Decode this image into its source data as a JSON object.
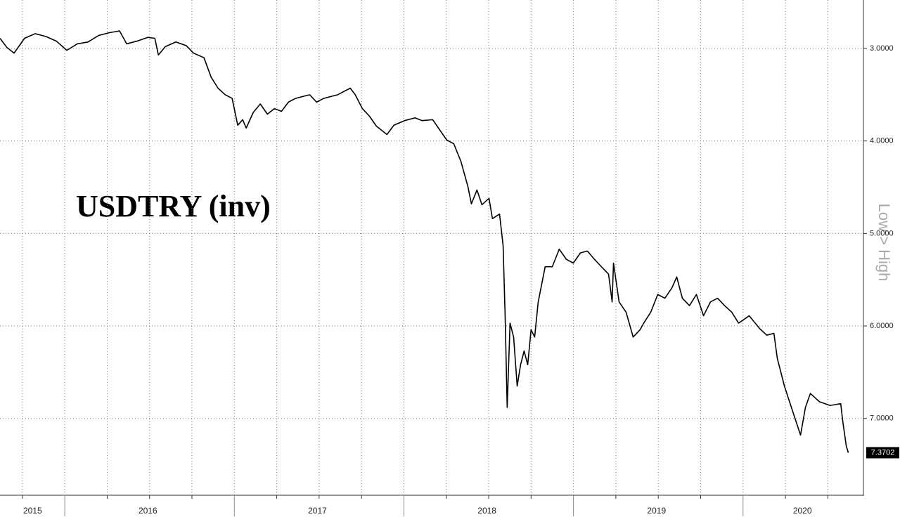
{
  "chart_data": {
    "type": "line",
    "title": "USDTRY (inv)",
    "y_axis_label": "Low > High",
    "color": "#000000",
    "grid": true,
    "y_inverted": true,
    "xlim": [
      2015.618,
      2020.71
    ],
    "ylim": [
      2.476,
      7.83
    ],
    "yticks": [
      {
        "value": 3,
        "label": "3.0000"
      },
      {
        "value": 4,
        "label": "4.0000"
      },
      {
        "value": 5,
        "label": "5.0000"
      },
      {
        "value": 6,
        "label": "6.0000"
      },
      {
        "value": 7,
        "label": "7.0000"
      }
    ],
    "xticks": [
      2015.75,
      2016,
      2016.25,
      2016.5,
      2016.75,
      2017,
      2017.25,
      2017.5,
      2017.75,
      2018,
      2018.25,
      2018.5,
      2018.75,
      2019,
      2019.25,
      2019.5,
      2019.75,
      2020,
      2020.25,
      2020.5
    ],
    "year_labels": [
      {
        "value": 2015.81,
        "label": "2015"
      },
      {
        "value": 2016.49,
        "label": "2016"
      },
      {
        "value": 2017.49,
        "label": "2017"
      },
      {
        "value": 2018.49,
        "label": "2018"
      },
      {
        "value": 2019.49,
        "label": "2019"
      },
      {
        "value": 2020.35,
        "label": "2020"
      }
    ],
    "x": [
      2015.618,
      2015.659,
      2015.701,
      2015.763,
      2015.825,
      2015.888,
      2015.95,
      2016.012,
      2016.074,
      2016.137,
      2016.199,
      2016.261,
      2016.323,
      2016.365,
      2016.427,
      2016.489,
      2016.531,
      2016.552,
      2016.593,
      2016.655,
      2016.717,
      2016.759,
      2016.821,
      2016.863,
      2016.904,
      2016.946,
      2016.987,
      2017.02,
      2017.049,
      2017.07,
      2017.112,
      2017.153,
      2017.195,
      2017.236,
      2017.278,
      2017.319,
      2017.361,
      2017.402,
      2017.444,
      2017.485,
      2017.527,
      2017.568,
      2017.61,
      2017.651,
      2017.684,
      2017.713,
      2017.755,
      2017.796,
      2017.838,
      2017.9,
      2017.941,
      2018.004,
      2018.066,
      2018.107,
      2018.17,
      2018.211,
      2018.253,
      2018.294,
      2018.336,
      2018.377,
      2018.398,
      2018.431,
      2018.46,
      2018.502,
      2018.522,
      2018.564,
      2018.585,
      2018.597,
      2018.609,
      2018.626,
      2018.647,
      2018.668,
      2018.688,
      2018.709,
      2018.73,
      2018.75,
      2018.771,
      2018.792,
      2018.833,
      2018.875,
      2018.916,
      2018.958,
      2018.999,
      2019.041,
      2019.082,
      2019.124,
      2019.165,
      2019.207,
      2019.228,
      2019.236,
      2019.269,
      2019.31,
      2019.352,
      2019.393,
      2019.414,
      2019.456,
      2019.497,
      2019.539,
      2019.58,
      2019.609,
      2019.642,
      2019.684,
      2019.725,
      2019.767,
      2019.808,
      2019.85,
      2019.891,
      2019.933,
      2019.974,
      2020.036,
      2020.099,
      2020.14,
      2020.182,
      2020.202,
      2020.244,
      2020.285,
      2020.339,
      2020.368,
      2020.397,
      2020.451,
      2020.514,
      2020.576,
      2020.588,
      2020.609,
      2020.621
    ],
    "series": [
      {
        "values": [
          2.89,
          2.99,
          3.05,
          2.89,
          2.84,
          2.87,
          2.92,
          3.02,
          2.95,
          2.93,
          2.86,
          2.83,
          2.81,
          2.95,
          2.92,
          2.88,
          2.89,
          3.07,
          2.98,
          2.93,
          2.97,
          3.05,
          3.1,
          3.31,
          3.43,
          3.5,
          3.54,
          3.83,
          3.77,
          3.86,
          3.69,
          3.6,
          3.71,
          3.65,
          3.68,
          3.58,
          3.54,
          3.52,
          3.5,
          3.58,
          3.54,
          3.52,
          3.5,
          3.46,
          3.43,
          3.5,
          3.65,
          3.73,
          3.84,
          3.93,
          3.83,
          3.78,
          3.75,
          3.78,
          3.77,
          3.88,
          3.99,
          4.03,
          4.22,
          4.49,
          4.68,
          4.53,
          4.69,
          4.62,
          4.84,
          4.79,
          5.13,
          5.89,
          6.88,
          5.97,
          6.12,
          6.65,
          6.42,
          6.27,
          6.42,
          6.04,
          6.12,
          5.74,
          5.36,
          5.36,
          5.17,
          5.28,
          5.32,
          5.21,
          5.19,
          5.28,
          5.36,
          5.44,
          5.74,
          5.32,
          5.74,
          5.85,
          6.12,
          6.04,
          5.97,
          5.85,
          5.66,
          5.7,
          5.59,
          5.47,
          5.7,
          5.78,
          5.66,
          5.89,
          5.74,
          5.7,
          5.78,
          5.85,
          5.97,
          5.89,
          6.03,
          6.1,
          6.08,
          6.35,
          6.65,
          6.88,
          7.18,
          6.88,
          6.73,
          6.82,
          6.86,
          6.84,
          7.03,
          7.3,
          7.3702
        ]
      }
    ]
  }
}
